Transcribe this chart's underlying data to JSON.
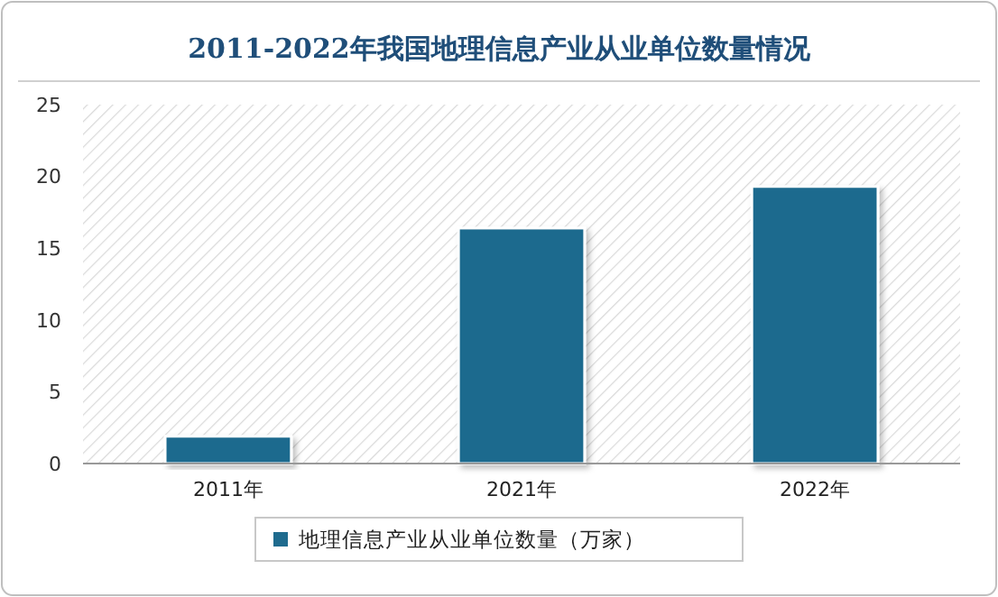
{
  "chart_data": {
    "type": "bar",
    "title": "2011-2022年我国地理信息产业从业单位数量情况",
    "categories": [
      "2011年",
      "2021年",
      "2022年"
    ],
    "series": [
      {
        "name": "地理信息产业从业单位数量（万家）",
        "color": "#1f6b8e",
        "values": [
          1.9,
          16.4,
          19.3
        ]
      }
    ],
    "ylim": [
      0,
      25
    ],
    "yticks": [
      0,
      5,
      10,
      15,
      20,
      25
    ],
    "grid": false,
    "legend": "bottom"
  }
}
